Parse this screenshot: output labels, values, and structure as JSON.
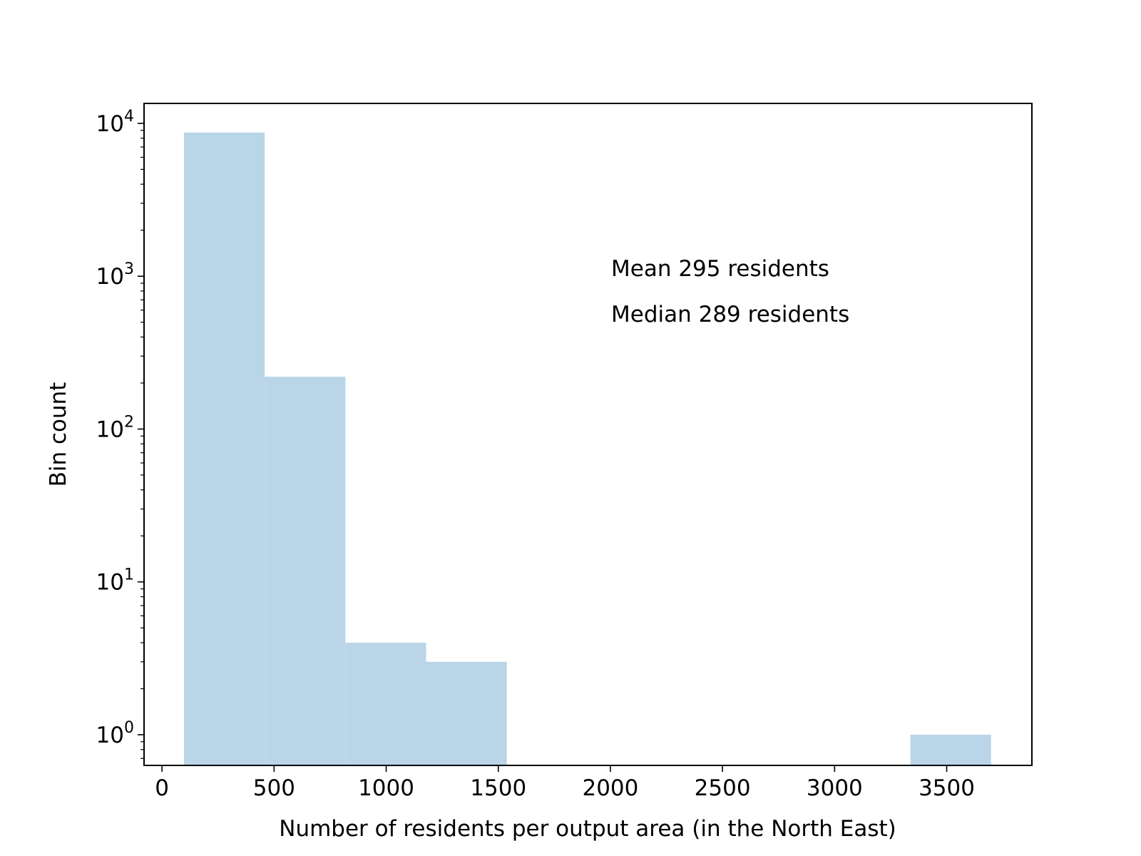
{
  "chart_data": {
    "type": "bar",
    "subtype": "histogram",
    "title": "",
    "xlabel": "Number of residents per output area (in the North East)",
    "ylabel": "Bin count",
    "y_scale": "log",
    "xlim": [
      -80,
      3880
    ],
    "ylim": [
      0.63,
      13500
    ],
    "grid": false,
    "bar_color": "#bad5e8",
    "x_ticks": [
      0,
      500,
      1000,
      1500,
      2000,
      2500,
      3000,
      3500
    ],
    "x_tick_labels": [
      "0",
      "500",
      "1000",
      "1500",
      "2000",
      "2500",
      "3000",
      "3500"
    ],
    "y_ticks": [
      1,
      10,
      100,
      1000,
      10000
    ],
    "y_tick_labels": [
      {
        "base": "10",
        "exp": "0"
      },
      {
        "base": "10",
        "exp": "1"
      },
      {
        "base": "10",
        "exp": "2"
      },
      {
        "base": "10",
        "exp": "3"
      },
      {
        "base": "10",
        "exp": "4"
      }
    ],
    "bins": [
      {
        "x0": 98,
        "x1": 458,
        "count": 8700
      },
      {
        "x0": 458,
        "x1": 818,
        "count": 220
      },
      {
        "x0": 818,
        "x1": 1178,
        "count": 4
      },
      {
        "x0": 1178,
        "x1": 1538,
        "count": 3
      },
      {
        "x0": 3338,
        "x1": 3698,
        "count": 1
      }
    ],
    "annotations": [
      "Mean 295 residents",
      "Median 289 residents"
    ]
  }
}
